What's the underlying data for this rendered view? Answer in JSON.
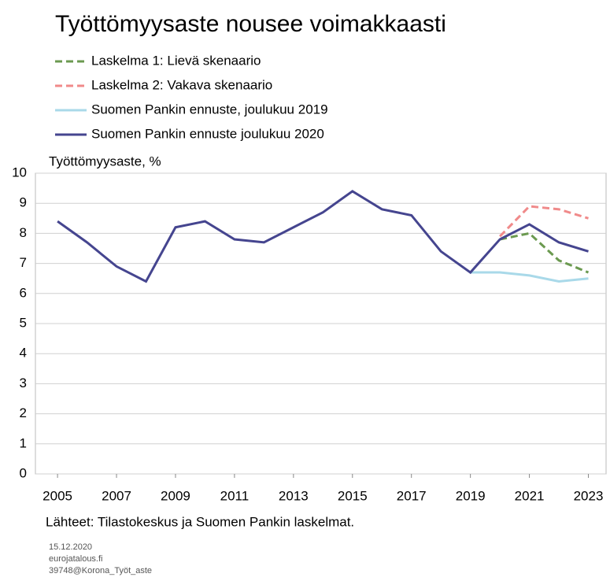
{
  "chart_data": {
    "type": "line",
    "title": "Työttömyysaste nousee voimakkaasti",
    "y_label": "Työttömyysaste,  %",
    "source": "Lähteet:  Tilastokeskus  ja Suomen Pankin laskelmat.",
    "footnotes": [
      "15.12.2020",
      "eurojatalous.fi",
      "39748@Korona_Työt_aste"
    ],
    "x": [
      2005,
      2006,
      2007,
      2008,
      2009,
      2010,
      2011,
      2012,
      2013,
      2014,
      2015,
      2016,
      2017,
      2018,
      2019,
      2020,
      2021,
      2022,
      2023
    ],
    "series": [
      {
        "name": "Laskelma 1: Lievä skenaario",
        "color": "#6b9a50",
        "dashed": true,
        "values": [
          null,
          null,
          null,
          null,
          null,
          null,
          null,
          null,
          null,
          null,
          null,
          null,
          null,
          null,
          null,
          7.8,
          8.0,
          7.1,
          6.7
        ]
      },
      {
        "name": "Laskelma 2: Vakava skenaario",
        "color": "#f08a8a",
        "dashed": true,
        "values": [
          null,
          null,
          null,
          null,
          null,
          null,
          null,
          null,
          null,
          null,
          null,
          null,
          null,
          null,
          null,
          7.9,
          8.9,
          8.8,
          8.5
        ]
      },
      {
        "name": "Suomen Pankin ennuste, joulukuu 2019",
        "color": "#a9d9e9",
        "dashed": false,
        "values": [
          null,
          null,
          null,
          null,
          null,
          null,
          null,
          null,
          null,
          null,
          null,
          null,
          null,
          null,
          6.7,
          6.7,
          6.6,
          6.4,
          6.5
        ]
      },
      {
        "name": "Suomen Pankin ennuste joulukuu 2020",
        "color": "#45458f",
        "dashed": false,
        "values": [
          8.4,
          7.7,
          6.9,
          6.4,
          8.2,
          8.4,
          7.8,
          7.7,
          8.2,
          8.7,
          9.4,
          8.8,
          8.6,
          7.4,
          6.7,
          7.8,
          8.3,
          7.7,
          7.4
        ]
      }
    ],
    "xlim": [
      2004.25,
      2023.6
    ],
    "xticks": [
      2005,
      2007,
      2009,
      2011,
      2013,
      2015,
      2017,
      2019,
      2021,
      2023
    ],
    "ylim": [
      0,
      10
    ],
    "yticks": [
      0,
      1,
      2,
      3,
      4,
      5,
      6,
      7,
      8,
      9,
      10
    ],
    "grid": true
  }
}
